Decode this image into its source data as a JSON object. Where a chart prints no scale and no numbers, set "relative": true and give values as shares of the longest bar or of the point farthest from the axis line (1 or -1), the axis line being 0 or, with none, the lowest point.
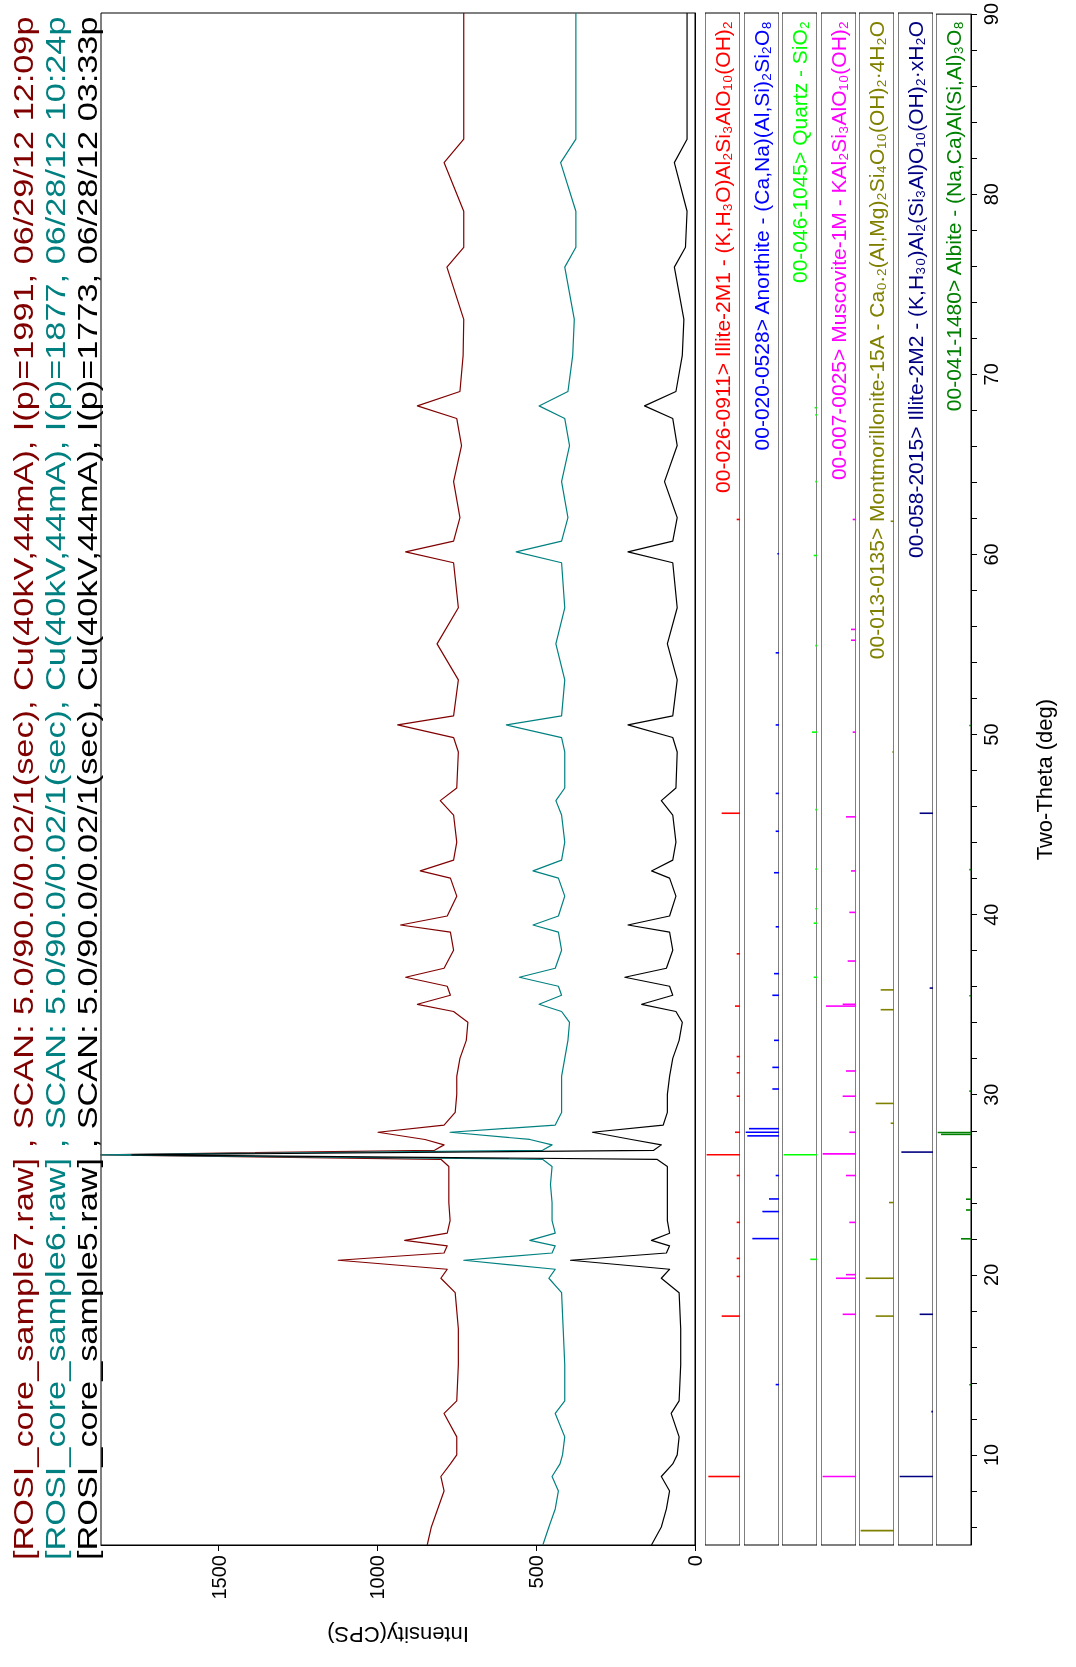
{
  "chart_data": [
    {
      "type": "line",
      "xlabel": "Intensity(CPS)",
      "legend": "left",
      "tick_labels": "x",
      "marker": "none",
      "xlim": [
        1870,
        0
      ],
      "ylim": [
        5,
        90
      ],
      "xticks": [
        0,
        500,
        1000,
        1500
      ],
      "series": [
        {
          "name": "[ROSI_core_sample7.raw] , SCAN: 5.0/90.0/0.02/1(sec), Cu(40kV,44mA), I(p)=1991, 06/29/12 12:09p",
          "color": "#800000",
          "x": [
            843,
            830,
            810,
            790,
            800,
            770,
            750,
            750,
            790,
            750,
            745,
            745,
            755,
            800,
            780,
            1123,
            790,
            780,
            914,
            780,
            771,
            775,
            775,
            775,
            800,
            1870,
            820,
            790,
            850,
            998,
            790,
            755,
            750,
            750,
            740,
            720,
            715,
            760,
            874,
            770,
            780,
            911,
            790,
            760,
            770,
            927,
            780,
            750,
            770,
            865,
            760,
            750,
            760,
            802,
            750,
            745,
            760,
            936,
            760,
            745,
            812,
            745,
            760,
            911,
            760,
            740,
            760,
            735,
            750,
            874,
            740,
            730,
            728,
            781,
            728,
            728,
            790,
            728,
            728,
            728,
            728
          ],
          "values": [
            5,
            6,
            7,
            8,
            8.8,
            9.5,
            10,
            11,
            12.3,
            13,
            15,
            17,
            19,
            19.8,
            20.3,
            20.8,
            21.2,
            21.6,
            21.9,
            22.3,
            23,
            24,
            25,
            26,
            26.4,
            26.65,
            26.9,
            27.2,
            27.5,
            27.9,
            28.3,
            29,
            30,
            31,
            32,
            33,
            34,
            34.6,
            35,
            35.5,
            36,
            36.5,
            37,
            38,
            39,
            39.4,
            39.9,
            41,
            42,
            42.4,
            43,
            44,
            45.5,
            46.3,
            47,
            49,
            49.8,
            50.5,
            51,
            53,
            55,
            57,
            59.5,
            60.1,
            60.7,
            62,
            64,
            66,
            67.5,
            68.2,
            69,
            71,
            73,
            75.9,
            77,
            79,
            81.7,
            83,
            85,
            87,
            90
          ]
        },
        {
          "name": "[ROSI_core_sample6.raw] , SCAN: 5.0/90.0/0.02/1(sec), Cu(40kV,44mA), I(p)=1877, 06/28/12 10:24p",
          "color": "#008080",
          "x": [
            479,
            460,
            440,
            430,
            450,
            425,
            417,
            410,
            440,
            410,
            410,
            415,
            420,
            460,
            440,
            728,
            450,
            440,
            520,
            440,
            450,
            450,
            455,
            450,
            480,
            1870,
            480,
            450,
            520,
            771,
            440,
            420,
            420,
            420,
            410,
            400,
            395,
            420,
            491,
            420,
            430,
            553,
            440,
            420,
            430,
            510,
            430,
            410,
            430,
            510,
            420,
            410,
            420,
            438,
            410,
            410,
            420,
            594,
            420,
            410,
            438,
            410,
            420,
            563,
            420,
            400,
            420,
            395,
            410,
            491,
            400,
            385,
            380,
            410,
            375,
            375,
            423,
            375,
            375,
            375,
            375
          ],
          "values": [
            5,
            6,
            7,
            8,
            8.8,
            9.5,
            10,
            11,
            12.3,
            13,
            15,
            17,
            19,
            19.8,
            20.3,
            20.8,
            21.2,
            21.6,
            21.9,
            22.3,
            23,
            24,
            25,
            26,
            26.4,
            26.65,
            26.9,
            27.2,
            27.5,
            27.9,
            28.3,
            29,
            30,
            31,
            32,
            33,
            34,
            34.6,
            35,
            35.5,
            36,
            36.5,
            37,
            38,
            39,
            39.4,
            39.9,
            41,
            42,
            42.4,
            43,
            44,
            45.5,
            46.3,
            47,
            49,
            49.8,
            50.5,
            51,
            53,
            55,
            57,
            59.5,
            60.1,
            60.7,
            62,
            64,
            66,
            67.5,
            68.2,
            69,
            71,
            73,
            75.9,
            77,
            79,
            81.7,
            83,
            85,
            87,
            90
          ]
        },
        {
          "name": "[ROSI_core_sample5.raw] , SCAN: 5.0/90.0/0.02/1(sec), Cu(40kV,44mA), I(p)=1773, 06/28/12 03:33p",
          "color": "#000000",
          "x": [
            137,
            106,
            90,
            80,
            106,
            70,
            56,
            50,
            75,
            50,
            45,
            45,
            50,
            106,
            80,
            392,
            90,
            80,
            137,
            80,
            87,
            87,
            87,
            87,
            120,
            1773,
            130,
            106,
            200,
            323,
            100,
            87,
            87,
            80,
            70,
            50,
            40,
            60,
            168,
            70,
            80,
            221,
            90,
            70,
            80,
            211,
            80,
            60,
            80,
            137,
            70,
            60,
            70,
            106,
            60,
            56,
            70,
            211,
            70,
            56,
            87,
            56,
            70,
            211,
            70,
            56,
            96,
            56,
            70,
            159,
            60,
            40,
            35,
            65,
            30,
            25,
            65,
            25,
            25,
            25,
            25
          ],
          "values": [
            5,
            6,
            7,
            8,
            8.8,
            9.5,
            10,
            11,
            12.3,
            13,
            15,
            17,
            19,
            19.8,
            20.3,
            20.8,
            21.2,
            21.6,
            21.9,
            22.3,
            23,
            24,
            25,
            26,
            26.4,
            26.65,
            26.9,
            27.2,
            27.5,
            27.9,
            28.3,
            29,
            30,
            31,
            32,
            33,
            34,
            34.6,
            35,
            35.5,
            36,
            36.5,
            37,
            38,
            39,
            39.4,
            39.9,
            41,
            42,
            42.4,
            43,
            44,
            45.5,
            46.3,
            47,
            49,
            49.8,
            50.5,
            51,
            53,
            55,
            57,
            59.5,
            60.1,
            60.7,
            62,
            64,
            66,
            67.5,
            68.2,
            69,
            71,
            73,
            75.9,
            77,
            79,
            81.7,
            83,
            85,
            87,
            90
          ]
        }
      ]
    },
    {
      "type": "bar",
      "orientation": "horizontal",
      "relative": true,
      "tick_labels": false,
      "ylim": [
        5,
        90
      ],
      "x": [
        8.8,
        17.7,
        19.9,
        20.9,
        22.9,
        25.5,
        26.65,
        27.9,
        29.9,
        31.2,
        32.1,
        34.9,
        37.8,
        45.6,
        61.9
      ],
      "series": [
        {
          "name": "00-026-0911> Illite-2M1 - (K,H₃O)Al₂Si₃AlO₁₀(OH)₂",
          "color": "#ff0000",
          "values": [
            0.95,
            0.55,
            0.1,
            0.1,
            0.1,
            0.1,
            1,
            0.15,
            0.1,
            0.1,
            0.1,
            0.15,
            0.1,
            0.55,
            0.1
          ]
        }
      ]
    },
    {
      "type": "bar",
      "orientation": "horizontal",
      "relative": true,
      "tick_labels": false,
      "ylim": [
        5,
        90
      ],
      "x": [
        13.9,
        22.0,
        23.5,
        24.2,
        25.5,
        27.7,
        27.9,
        28.1,
        30.3,
        31.5,
        33.0,
        35.5,
        36.7,
        39.3,
        42.3,
        44.6,
        46.7,
        50.5,
        54.5,
        60.0
      ],
      "series": [
        {
          "name": "00-020-0528> Anorthite - (Ca,Na)(Al,Si)₂Si₂O₈",
          "color": "#0000ff",
          "values": [
            0.1,
            0.8,
            0.5,
            0.3,
            0.1,
            0.95,
            1,
            0.9,
            0.2,
            0.2,
            0.15,
            0.2,
            0.15,
            0.1,
            0.15,
            0.1,
            0.1,
            0.1,
            0.1,
            0.05
          ]
        }
      ]
    },
    {
      "type": "bar",
      "orientation": "horizontal",
      "relative": true,
      "tick_labels": false,
      "ylim": [
        5,
        90
      ],
      "x": [
        20.85,
        26.65,
        36.5,
        39.5,
        40.3,
        42.5,
        45.8,
        50.1,
        54.9,
        59.9,
        64.0,
        67.7,
        68.1
      ],
      "series": [
        {
          "name": "00-046-1045> Quartz - SiO₂",
          "color": "#00ff00",
          "values": [
            0.2,
            1,
            0.1,
            0.1,
            0.05,
            0.05,
            0.05,
            0.15,
            0.05,
            0.1,
            0.05,
            0.05,
            0.07
          ]
        }
      ]
    },
    {
      "type": "bar",
      "orientation": "horizontal",
      "relative": true,
      "tick_labels": false,
      "ylim": [
        5,
        90
      ],
      "x": [
        8.8,
        17.8,
        19.8,
        20.0,
        22.9,
        25.5,
        26.7,
        27.9,
        29.9,
        31.3,
        34.9,
        35.0,
        37.4,
        40.1,
        42.4,
        45.4,
        50.1,
        55.2,
        55.8,
        61.9
      ],
      "series": [
        {
          "name": "00-007-0025> Muscovite-1M - KAl₂Si₃AlO₁₀(OH)₂",
          "color": "#ff00ff",
          "values": [
            1,
            0.4,
            0.6,
            0.3,
            0.2,
            0.3,
            1,
            0.2,
            0.4,
            0.3,
            0.9,
            0.4,
            0.25,
            0.2,
            0.15,
            0.3,
            0.1,
            0.15,
            0.15,
            0.1
          ]
        }
      ]
    },
    {
      "type": "bar",
      "orientation": "horizontal",
      "relative": true,
      "tick_labels": false,
      "ylim": [
        5,
        90
      ],
      "x": [
        5.8,
        17.7,
        19.8,
        24.0,
        28.4,
        29.5,
        34.7,
        35.8,
        49.0,
        61.8
      ],
      "series": [
        {
          "name": "00-013-0135> Montmorillonite-15A - Ca₀.₂(Al,Mg)₂Si₄O₁₀(OH)₂·4H₂O",
          "color": "#808000",
          "values": [
            1,
            0.55,
            0.85,
            0.15,
            0.1,
            0.55,
            0.4,
            0.4,
            0.05,
            0.1
          ]
        }
      ]
    },
    {
      "type": "bar",
      "orientation": "horizontal",
      "relative": true,
      "tick_labels": false,
      "ylim": [
        5,
        90
      ],
      "x": [
        8.8,
        12.4,
        17.8,
        26.8,
        35.9,
        45.6
      ],
      "series": [
        {
          "name": "00-058-2015> Illite-2M2 - (K,H₃₀)Al₂(Si₃Al)O₁₀(OH)₂·xH₂O",
          "color": "#000080",
          "values": [
            1,
            0.05,
            0.4,
            0.95,
            0.1,
            0.4
          ]
        }
      ]
    },
    {
      "type": "bar",
      "orientation": "horizontal",
      "relative": true,
      "tick_labels": "y",
      "ylim": [
        5,
        90
      ],
      "ylabel": "Two-Theta (deg)",
      "yticks": [
        {
          "value": 6,
          "label": null
        },
        {
          "value": 8,
          "label": null
        },
        10,
        {
          "value": 12,
          "label": null
        },
        {
          "value": 14,
          "label": null
        },
        {
          "value": 16,
          "label": null
        },
        {
          "value": 18,
          "label": null
        },
        20,
        {
          "value": 22,
          "label": null
        },
        {
          "value": 24,
          "label": null
        },
        {
          "value": 26,
          "label": null
        },
        {
          "value": 28,
          "label": null
        },
        30,
        {
          "value": 32,
          "label": null
        },
        {
          "value": 34,
          "label": null
        },
        {
          "value": 36,
          "label": null
        },
        {
          "value": 38,
          "label": null
        },
        40,
        {
          "value": 42,
          "label": null
        },
        {
          "value": 44,
          "label": null
        },
        {
          "value": 46,
          "label": null
        },
        {
          "value": 48,
          "label": null
        },
        50,
        {
          "value": 52,
          "label": null
        },
        {
          "value": 54,
          "label": null
        },
        {
          "value": 56,
          "label": null
        },
        {
          "value": 58,
          "label": null
        },
        60,
        {
          "value": 62,
          "label": null
        },
        {
          "value": 64,
          "label": null
        },
        {
          "value": 66,
          "label": null
        },
        {
          "value": 68,
          "label": null
        },
        70,
        {
          "value": 72,
          "label": null
        },
        {
          "value": 74,
          "label": null
        },
        {
          "value": 76,
          "label": null
        },
        {
          "value": 78,
          "label": null
        },
        80,
        {
          "value": 82,
          "label": null
        },
        {
          "value": 84,
          "label": null
        },
        {
          "value": 86,
          "label": null
        },
        {
          "value": 88,
          "label": null
        },
        90
      ],
      "x": [
        13.9,
        22.0,
        23.6,
        24.2,
        27.8,
        27.9,
        30.2,
        35.5,
        42.5,
        50.5
      ],
      "series": [
        {
          "name": "00-041-1480> Albite - (Na,Ca)Al(Si,Al)₃O₈",
          "color": "#008000",
          "values": [
            0.05,
            0.3,
            0.15,
            0.15,
            0.9,
            1,
            0.05,
            0.05,
            0.05,
            0.05
          ]
        }
      ]
    }
  ]
}
